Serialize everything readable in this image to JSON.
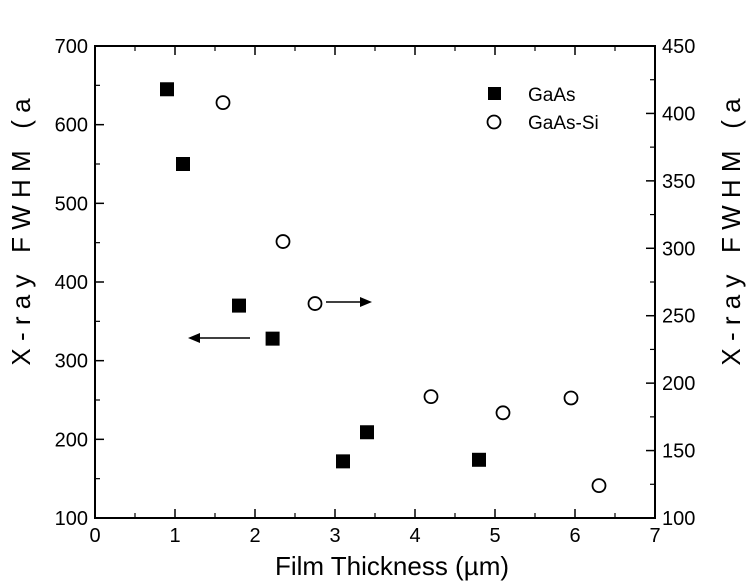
{
  "chart_data": {
    "type": "scatter",
    "xlabel": "Film Thickness (µm)",
    "ylabel_left": "X - r a y   F W H M   ( a",
    "ylabel_right": "X - r a y   F W H M   ( a",
    "xlim": [
      0,
      7
    ],
    "ylim_left": [
      100,
      700
    ],
    "ylim_right": [
      100,
      450
    ],
    "x_ticks": [
      0,
      1,
      2,
      3,
      4,
      5,
      6,
      7
    ],
    "y_left_ticks": [
      100,
      200,
      300,
      400,
      500,
      600,
      700
    ],
    "y_right_ticks": [
      100,
      150,
      200,
      250,
      300,
      350,
      400,
      450
    ],
    "grid": false,
    "legend_position": "top-right",
    "series": [
      {
        "name": "GaAs",
        "axis": "left",
        "marker": "filled-square",
        "x": [
          0.9,
          1.1,
          1.8,
          2.22,
          3.1,
          3.4,
          4.8
        ],
        "y": [
          645,
          550,
          370,
          328,
          172,
          209,
          174
        ]
      },
      {
        "name": "GaAs-Si",
        "axis": "right",
        "marker": "open-circle",
        "x": [
          1.6,
          2.35,
          2.75,
          4.2,
          5.1,
          5.95,
          6.3
        ],
        "y": [
          408,
          305,
          259,
          190,
          178,
          189,
          124
        ]
      }
    ]
  }
}
